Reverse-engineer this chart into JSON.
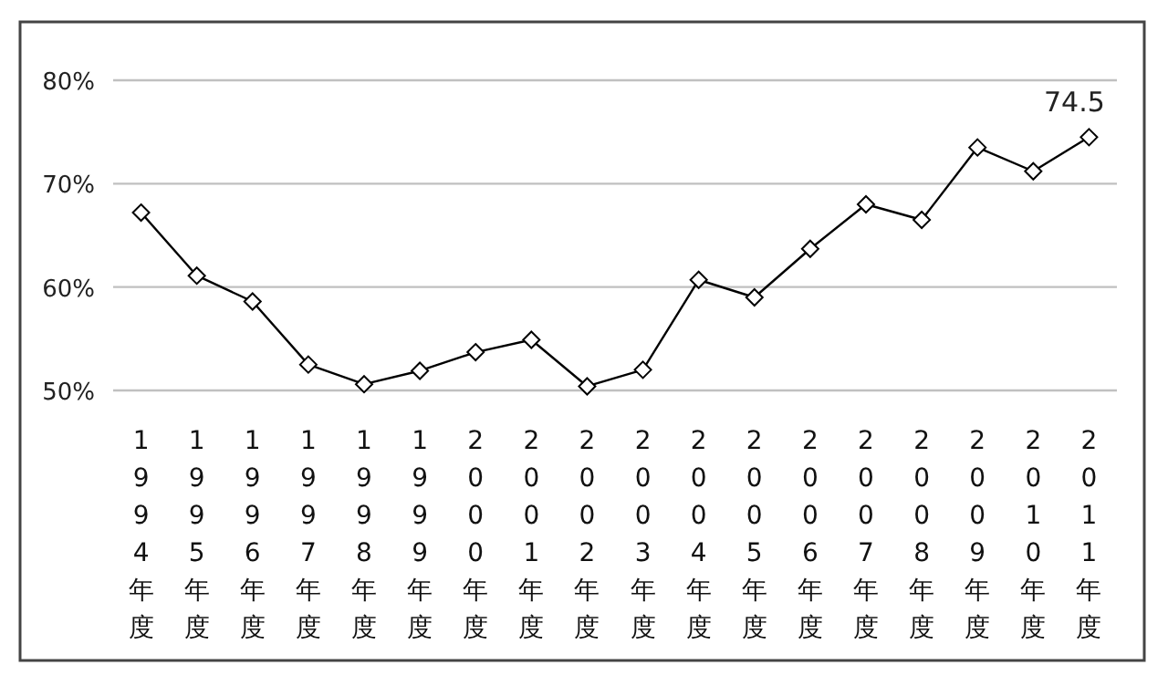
{
  "chart_data": {
    "type": "line",
    "categories": [
      "1994年度",
      "1995年度",
      "1996年度",
      "1997年度",
      "1998年度",
      "1999年度",
      "2000年度",
      "2001年度",
      "2002年度",
      "2003年度",
      "2004年度",
      "2005年度",
      "2006年度",
      "2007年度",
      "2008年度",
      "2009年度",
      "2010年度",
      "2011年度"
    ],
    "series": [
      {
        "color": "#000000",
        "values": [
          67.2,
          61.1,
          58.6,
          52.5,
          50.6,
          51.9,
          53.7,
          54.9,
          50.4,
          52.0,
          60.7,
          59.0,
          63.7,
          68.0,
          66.5,
          73.5,
          71.2,
          74.5
        ],
        "value_labels": [
          null,
          null,
          null,
          null,
          null,
          null,
          null,
          null,
          null,
          null,
          null,
          null,
          null,
          null,
          null,
          null,
          null,
          "74.5"
        ]
      }
    ],
    "ylim": [
      50,
      80
    ],
    "yticks": [
      {
        "value": 50,
        "label": "50%"
      },
      {
        "value": 60,
        "label": "60%"
      },
      {
        "value": 70,
        "label": "70%"
      },
      {
        "value": 80,
        "label": "80%"
      }
    ],
    "grid": "y",
    "marker": "diamond",
    "line_style": "solid"
  }
}
